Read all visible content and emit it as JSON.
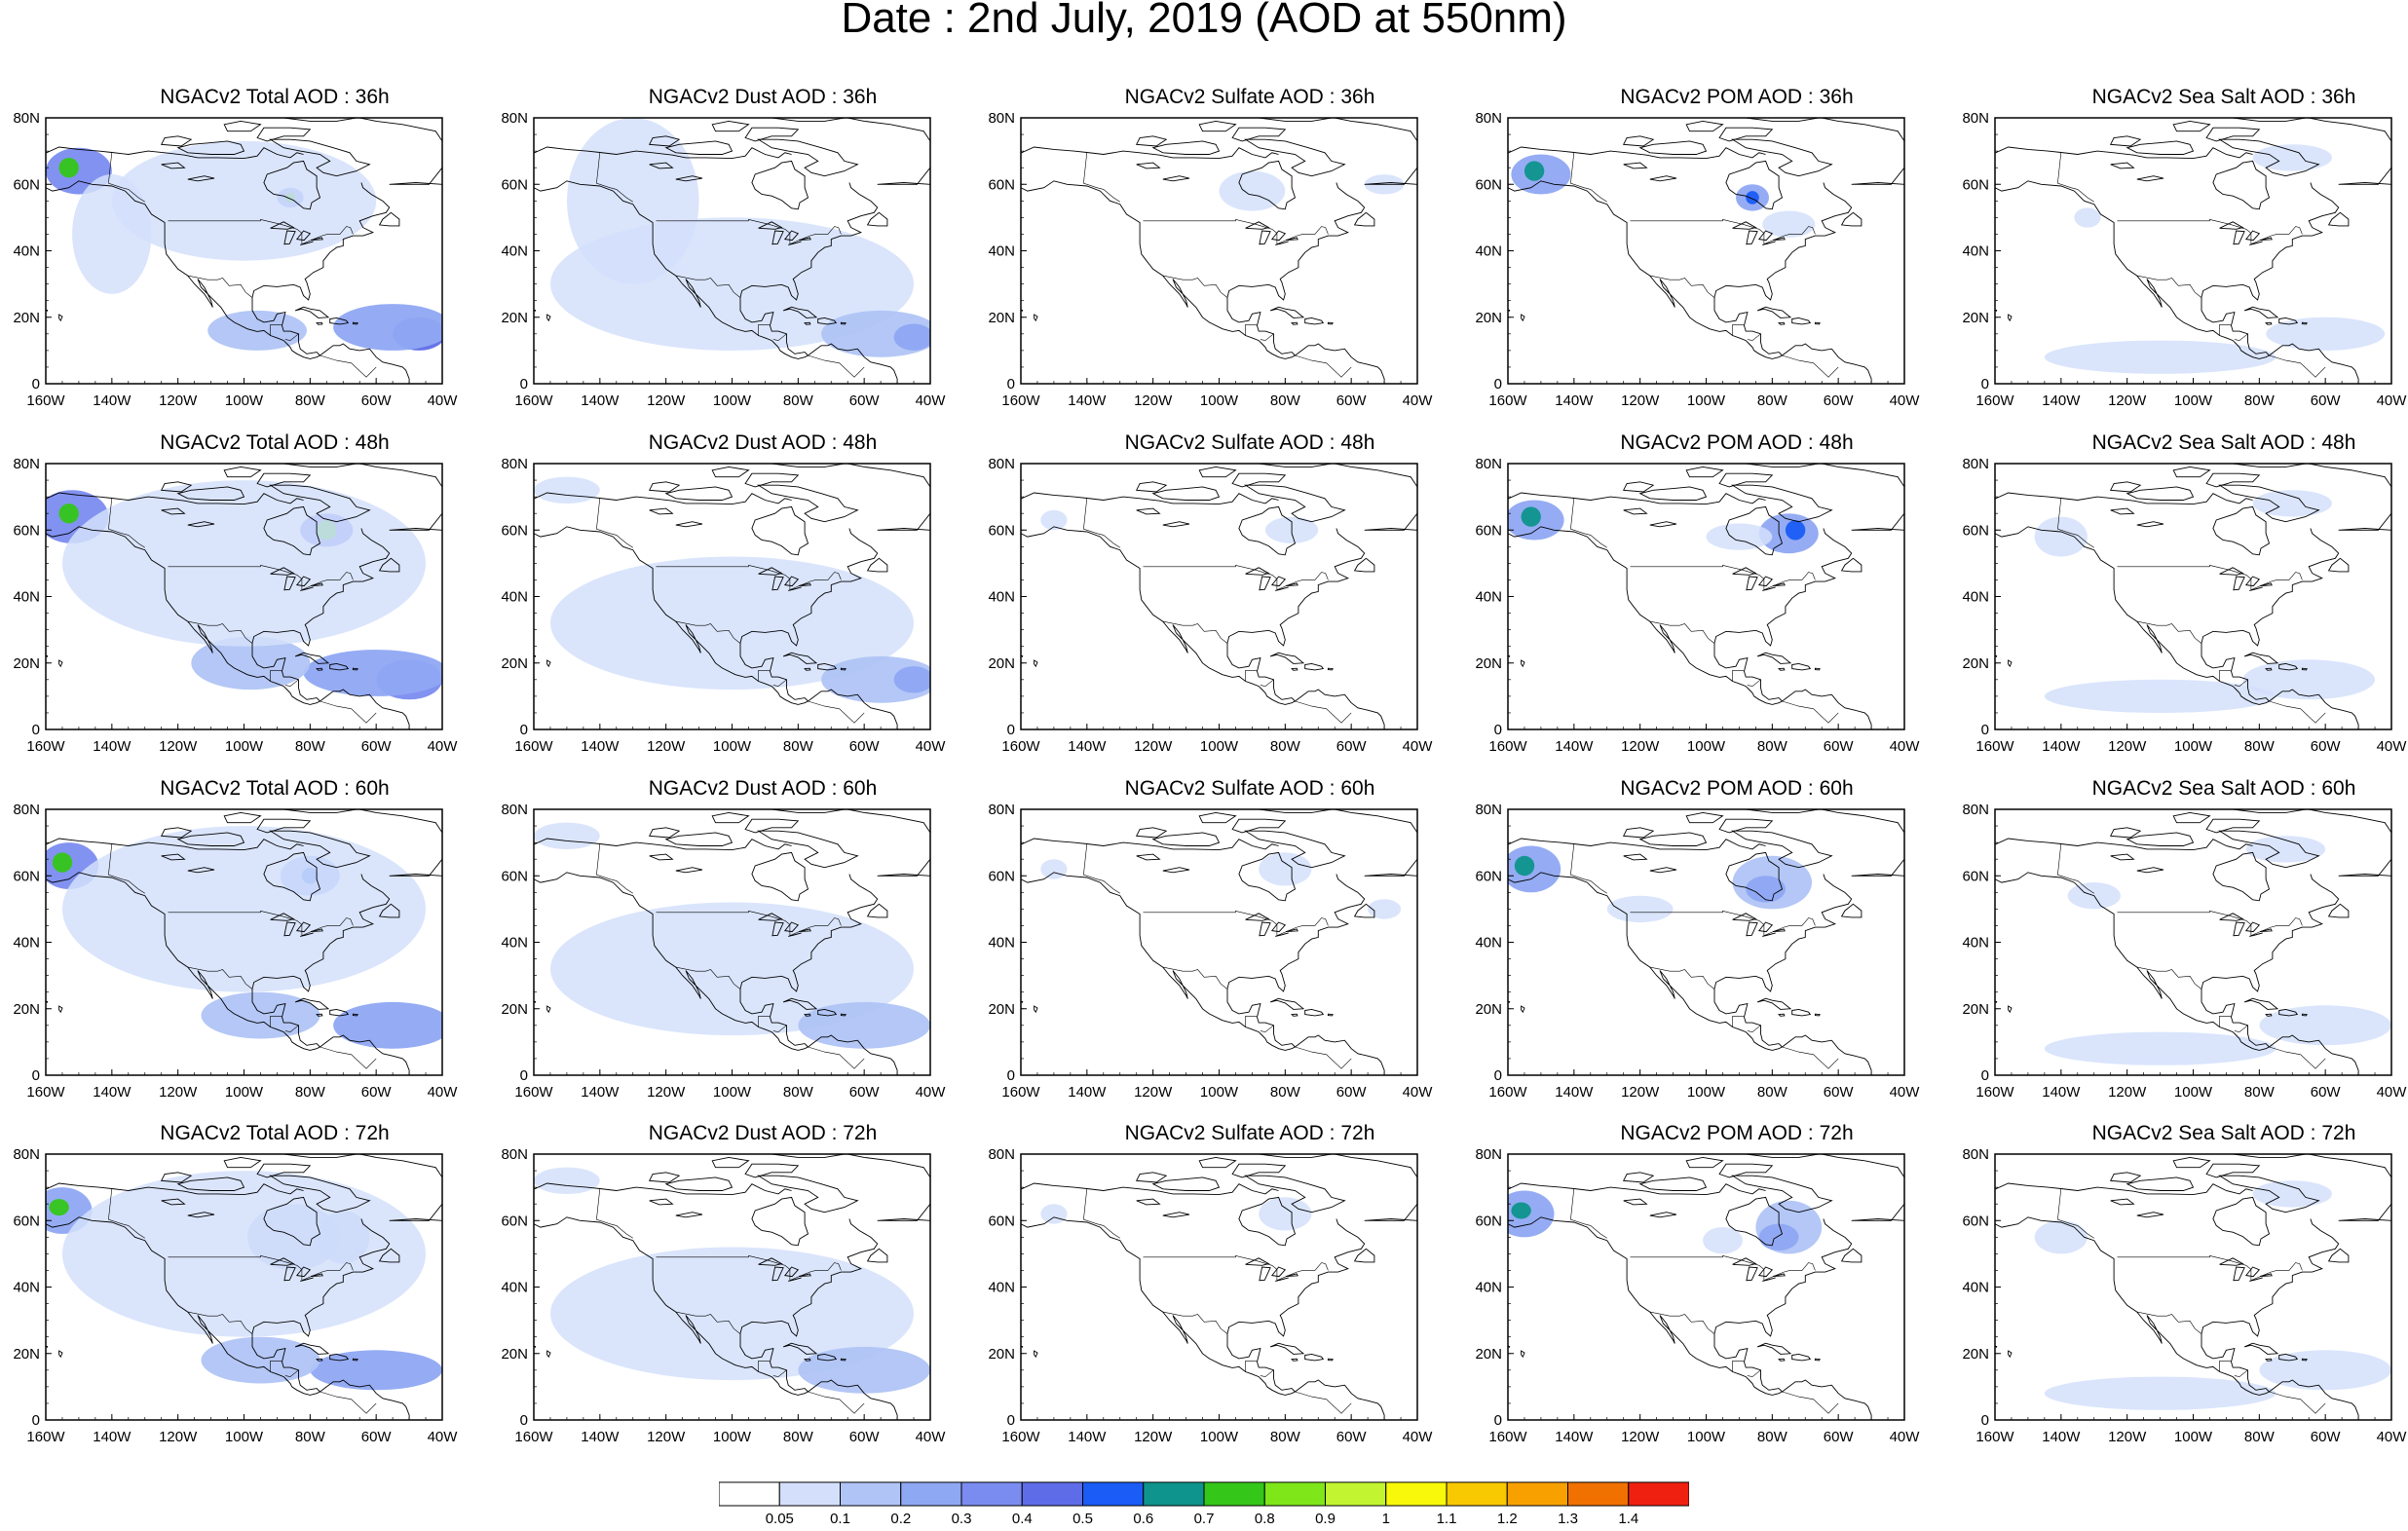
{
  "figure": {
    "title": "Date : 2nd July, 2019 (AOD at 550nm)"
  },
  "x_ticks": [
    "160W",
    "140W",
    "120W",
    "100W",
    "80W",
    "60W",
    "40W"
  ],
  "y_ticks": [
    "80N",
    "60N",
    "40N",
    "20N",
    "0"
  ],
  "panels": [
    {
      "row": 0,
      "col": 0,
      "title": "NGACv2 Total AOD : 36h"
    },
    {
      "row": 0,
      "col": 1,
      "title": "NGACv2 Dust AOD : 36h"
    },
    {
      "row": 0,
      "col": 2,
      "title": "NGACv2 Sulfate AOD : 36h"
    },
    {
      "row": 0,
      "col": 3,
      "title": "NGACv2 POM AOD : 36h"
    },
    {
      "row": 0,
      "col": 4,
      "title": "NGACv2 Sea Salt AOD : 36h"
    },
    {
      "row": 1,
      "col": 0,
      "title": "NGACv2 Total AOD : 48h"
    },
    {
      "row": 1,
      "col": 1,
      "title": "NGACv2 Dust AOD : 48h"
    },
    {
      "row": 1,
      "col": 2,
      "title": "NGACv2 Sulfate AOD : 48h"
    },
    {
      "row": 1,
      "col": 3,
      "title": "NGACv2 POM AOD : 48h"
    },
    {
      "row": 1,
      "col": 4,
      "title": "NGACv2 Sea Salt AOD : 48h"
    },
    {
      "row": 2,
      "col": 0,
      "title": "NGACv2 Total AOD : 60h"
    },
    {
      "row": 2,
      "col": 1,
      "title": "NGACv2 Dust AOD : 60h"
    },
    {
      "row": 2,
      "col": 2,
      "title": "NGACv2 Sulfate AOD : 60h"
    },
    {
      "row": 2,
      "col": 3,
      "title": "NGACv2 POM AOD : 60h"
    },
    {
      "row": 2,
      "col": 4,
      "title": "NGACv2 Sea Salt AOD : 60h"
    },
    {
      "row": 3,
      "col": 0,
      "title": "NGACv2 Total AOD : 72h"
    },
    {
      "row": 3,
      "col": 1,
      "title": "NGACv2 Dust AOD : 72h"
    },
    {
      "row": 3,
      "col": 2,
      "title": "NGACv2 Sulfate AOD : 72h"
    },
    {
      "row": 3,
      "col": 3,
      "title": "NGACv2 POM AOD : 72h"
    },
    {
      "row": 3,
      "col": 4,
      "title": "NGACv2 Sea Salt  AOD : 72h"
    }
  ],
  "colorbar": {
    "levels": [
      "0.05",
      "0.1",
      "0.2",
      "0.3",
      "0.4",
      "0.5",
      "0.6",
      "0.7",
      "0.8",
      "0.9",
      "1",
      "1.1",
      "1.2",
      "1.3",
      "1.4"
    ],
    "colors": [
      "#ffffff",
      "#d4e0fb",
      "#b0c4f6",
      "#8fa8f3",
      "#7b8cf0",
      "#5f6ce8",
      "#1a5cf5",
      "#0e948c",
      "#34c619",
      "#7ee619",
      "#c2f530",
      "#f8f80a",
      "#f8c800",
      "#f8a000",
      "#f07000",
      "#f02010"
    ]
  }
}
